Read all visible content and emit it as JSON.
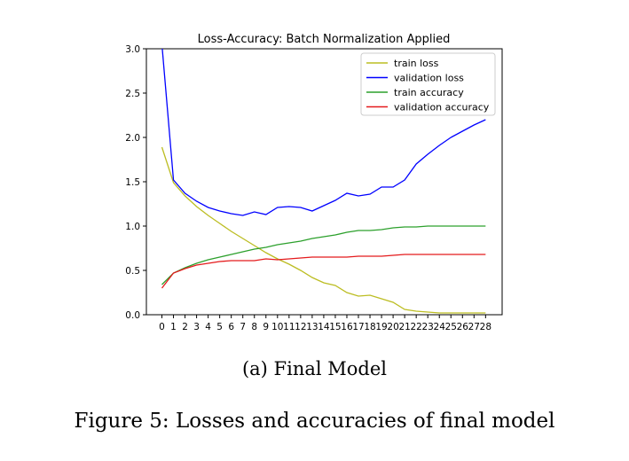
{
  "chart_data": {
    "type": "line",
    "title": "Loss-Accuracy: Batch Normalization Applied",
    "xlabel": "",
    "ylabel": "",
    "x": [
      0,
      1,
      2,
      3,
      4,
      5,
      6,
      7,
      8,
      9,
      10,
      11,
      12,
      13,
      14,
      15,
      16,
      17,
      18,
      19,
      20,
      21,
      22,
      23,
      24,
      25,
      26,
      27,
      28
    ],
    "xticklabels": [
      "0",
      "1",
      "2",
      "3",
      "4",
      "5",
      "6",
      "7",
      "8",
      "9",
      "10",
      "11",
      "12",
      "13",
      "14",
      "15",
      "16",
      "17",
      "18",
      "19",
      "20",
      "21",
      "22",
      "23",
      "24",
      "25",
      "26",
      "27",
      "28"
    ],
    "ylim": [
      0,
      3.0
    ],
    "yticks": [
      0.0,
      0.5,
      1.0,
      1.5,
      2.0,
      2.5,
      3.0
    ],
    "yticklabels": [
      "0.0",
      "0.5",
      "1.0",
      "1.5",
      "2.0",
      "2.5",
      "3.0"
    ],
    "legend_position": "top-right",
    "series": [
      {
        "name": "train loss",
        "color": "#bcbd22",
        "values": [
          1.89,
          1.49,
          1.34,
          1.22,
          1.12,
          1.03,
          0.94,
          0.86,
          0.78,
          0.7,
          0.63,
          0.57,
          0.5,
          0.42,
          0.36,
          0.33,
          0.25,
          0.21,
          0.22,
          0.18,
          0.14,
          0.06,
          0.04,
          0.03,
          0.02,
          0.02,
          0.02,
          0.02,
          0.02
        ]
      },
      {
        "name": "validation loss",
        "color": "#0000ff",
        "values": [
          3.05,
          1.52,
          1.37,
          1.28,
          1.21,
          1.17,
          1.14,
          1.12,
          1.16,
          1.13,
          1.21,
          1.22,
          1.21,
          1.17,
          1.23,
          1.29,
          1.37,
          1.34,
          1.36,
          1.44,
          1.44,
          1.52,
          1.7,
          1.81,
          1.91,
          2.0,
          2.07,
          2.14,
          2.2
        ]
      },
      {
        "name": "train accuracy",
        "color": "#2ca02c",
        "values": [
          0.34,
          0.47,
          0.53,
          0.58,
          0.62,
          0.65,
          0.68,
          0.71,
          0.74,
          0.76,
          0.79,
          0.81,
          0.83,
          0.86,
          0.88,
          0.9,
          0.93,
          0.95,
          0.95,
          0.96,
          0.98,
          0.99,
          0.99,
          1.0,
          1.0,
          1.0,
          1.0,
          1.0,
          1.0
        ]
      },
      {
        "name": "validation accuracy",
        "color": "#e41a1c",
        "values": [
          0.3,
          0.47,
          0.52,
          0.56,
          0.58,
          0.6,
          0.61,
          0.61,
          0.61,
          0.63,
          0.62,
          0.63,
          0.64,
          0.65,
          0.65,
          0.65,
          0.65,
          0.66,
          0.66,
          0.66,
          0.67,
          0.68,
          0.68,
          0.68,
          0.68,
          0.68,
          0.68,
          0.68,
          0.68
        ]
      }
    ]
  },
  "captions": {
    "subfigure": "(a) Final Model",
    "figure": "Figure 5: Losses and accuracies of final model"
  }
}
